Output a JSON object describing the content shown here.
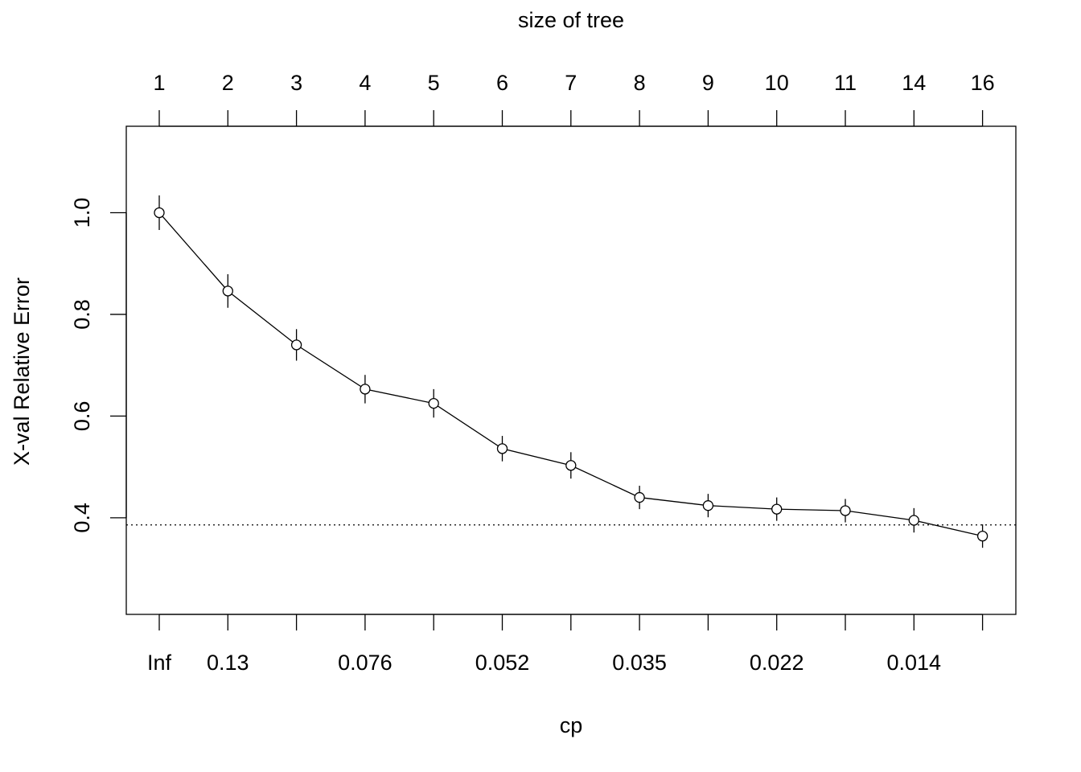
{
  "chart_data": {
    "type": "line",
    "xlabel": "cp",
    "ylabel": "X-val Relative Error",
    "top_axis_label": "size of tree",
    "size_of_tree": [
      "1",
      "2",
      "3",
      "4",
      "5",
      "6",
      "7",
      "8",
      "9",
      "10",
      "11",
      "14",
      "16"
    ],
    "cp_tick_labels": [
      "Inf",
      "0.13",
      "",
      "0.076",
      "",
      "0.052",
      "",
      "0.035",
      "",
      "0.022",
      "",
      "0.014",
      ""
    ],
    "y_ticks": [
      "0.4",
      "0.6",
      "0.8",
      "1.0"
    ],
    "ylim": [
      0.21,
      1.17
    ],
    "reference_line": 0.386,
    "series": [
      {
        "values": [
          1.0,
          0.846,
          0.74,
          0.653,
          0.625,
          0.536,
          0.503,
          0.44,
          0.424,
          0.417,
          0.414,
          0.395,
          0.364
        ],
        "err_low": [
          0.966,
          0.813,
          0.709,
          0.625,
          0.597,
          0.511,
          0.477,
          0.417,
          0.401,
          0.394,
          0.391,
          0.371,
          0.341
        ],
        "err_high": [
          1.034,
          0.879,
          0.771,
          0.681,
          0.653,
          0.561,
          0.529,
          0.463,
          0.447,
          0.44,
          0.437,
          0.419,
          0.387
        ]
      }
    ]
  }
}
